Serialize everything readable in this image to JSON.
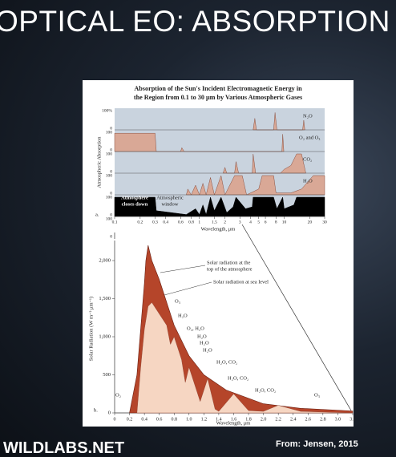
{
  "slide": {
    "title": "OPTICAL EO: ABSORPTION",
    "logo": "WILDLABS.NET",
    "source": "From: Jensen, 2015"
  },
  "figure_a": {
    "title_line1": "Absorption of the Sun's Incident Electromagnetic Energy in",
    "title_line2": "the Region from 0.1 to 30 μm by Various Atmospheric Gases",
    "y_label": "Atmospheric Absorption",
    "strip_ticks": [
      "100%",
      "0",
      "100",
      "0",
      "100",
      "0",
      "100",
      "0",
      "100",
      "0",
      "100",
      "0"
    ],
    "gases": [
      "N₂O",
      "O₂ and O₃",
      "CO₂",
      "H₂O"
    ],
    "closes_down": [
      "Atmosphere",
      "closes down"
    ],
    "window": [
      "Atmospheric",
      "window"
    ],
    "panel_label": "a.",
    "x_ticks": [
      "0.1",
      "0.2",
      "0.3",
      "0.4",
      "0.6",
      "0.8",
      "1",
      "1.5",
      "2",
      "3",
      "4",
      "5",
      "6",
      "8",
      "10",
      "20",
      "30"
    ],
    "x_label": "Wavelength, μm"
  },
  "figure_b": {
    "y_label": "Solar Radiation (W m⁻² μm⁻¹)",
    "y_ticks": [
      "2,000",
      "1,500",
      "1,000",
      "500",
      "0"
    ],
    "x_ticks": [
      "0",
      "0.2",
      "0.4",
      "0.6",
      "0.8",
      "1.0",
      "1.2",
      "1.4",
      "1.6",
      "1.8",
      "2.0",
      "2.2",
      "2.4",
      "2.6",
      "2.8",
      "3.0",
      "3.2"
    ],
    "x_label": "Wavelength, μm",
    "panel_label": "b.",
    "legend_top": [
      "Solar radiation at the",
      "top of the atmosphere"
    ],
    "legend_sea": "Solar radiation at sea level",
    "annotations": [
      "O₃",
      "H₂O",
      "O₂, H₂O",
      "H₂O",
      "H₂O",
      "H₂O",
      "H₂O, CO₂",
      "H₂O, CO₂",
      "H₂O, CO₂",
      "O₃",
      "O₂"
    ]
  }
}
